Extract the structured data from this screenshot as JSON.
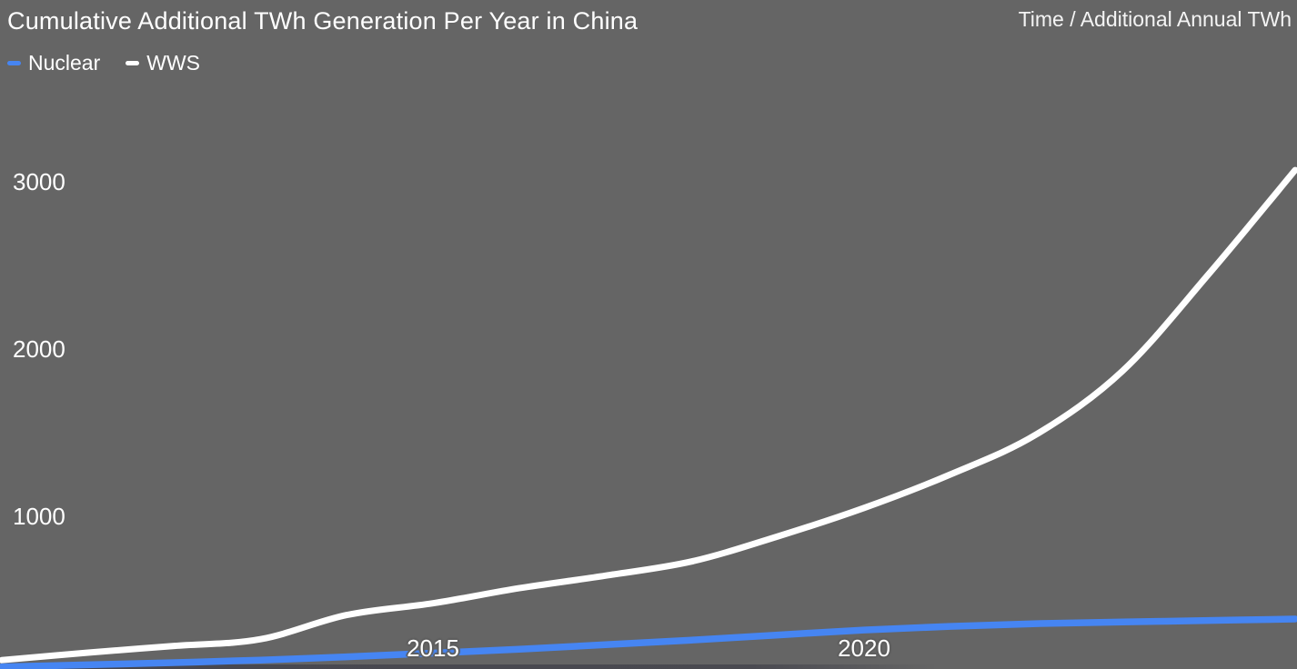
{
  "header": {
    "title": "Cumulative Additional TWh Generation Per Year in China",
    "axis_hint": "Time / Additional Annual TWh"
  },
  "colors": {
    "background": "#656565",
    "text": "#ffffff",
    "nuclear_line": "#4685f2",
    "wws_line": "#ffffff",
    "baseline_strip": "#3e3e48"
  },
  "chart_data": {
    "type": "line",
    "title": "Cumulative Additional TWh Generation Per Year in China",
    "xlabel": "Time",
    "ylabel": "Additional Annual TWh",
    "x": [
      2010,
      2011,
      2012,
      2013,
      2014,
      2015,
      2016,
      2017,
      2018,
      2019,
      2020,
      2021,
      2022,
      2023,
      2024,
      2025
    ],
    "series": [
      {
        "name": "Nuclear",
        "color": "#4685f2",
        "values": [
          100,
          112,
          125,
          140,
          160,
          182,
          205,
          232,
          260,
          290,
          320,
          342,
          358,
          368,
          377,
          386
        ]
      },
      {
        "name": "WWS",
        "color": "#ffffff",
        "values": [
          140,
          185,
          225,
          265,
          410,
          480,
          570,
          645,
          730,
          880,
          1050,
          1250,
          1490,
          1870,
          2450,
          3070
        ]
      }
    ],
    "x_ticks": [
      2015,
      2020
    ],
    "y_ticks": [
      1000,
      2000,
      3000
    ],
    "xlim": [
      2010,
      2025
    ],
    "ylim": [
      0,
      4000
    ],
    "grid": false,
    "legend_position": "top-left"
  }
}
